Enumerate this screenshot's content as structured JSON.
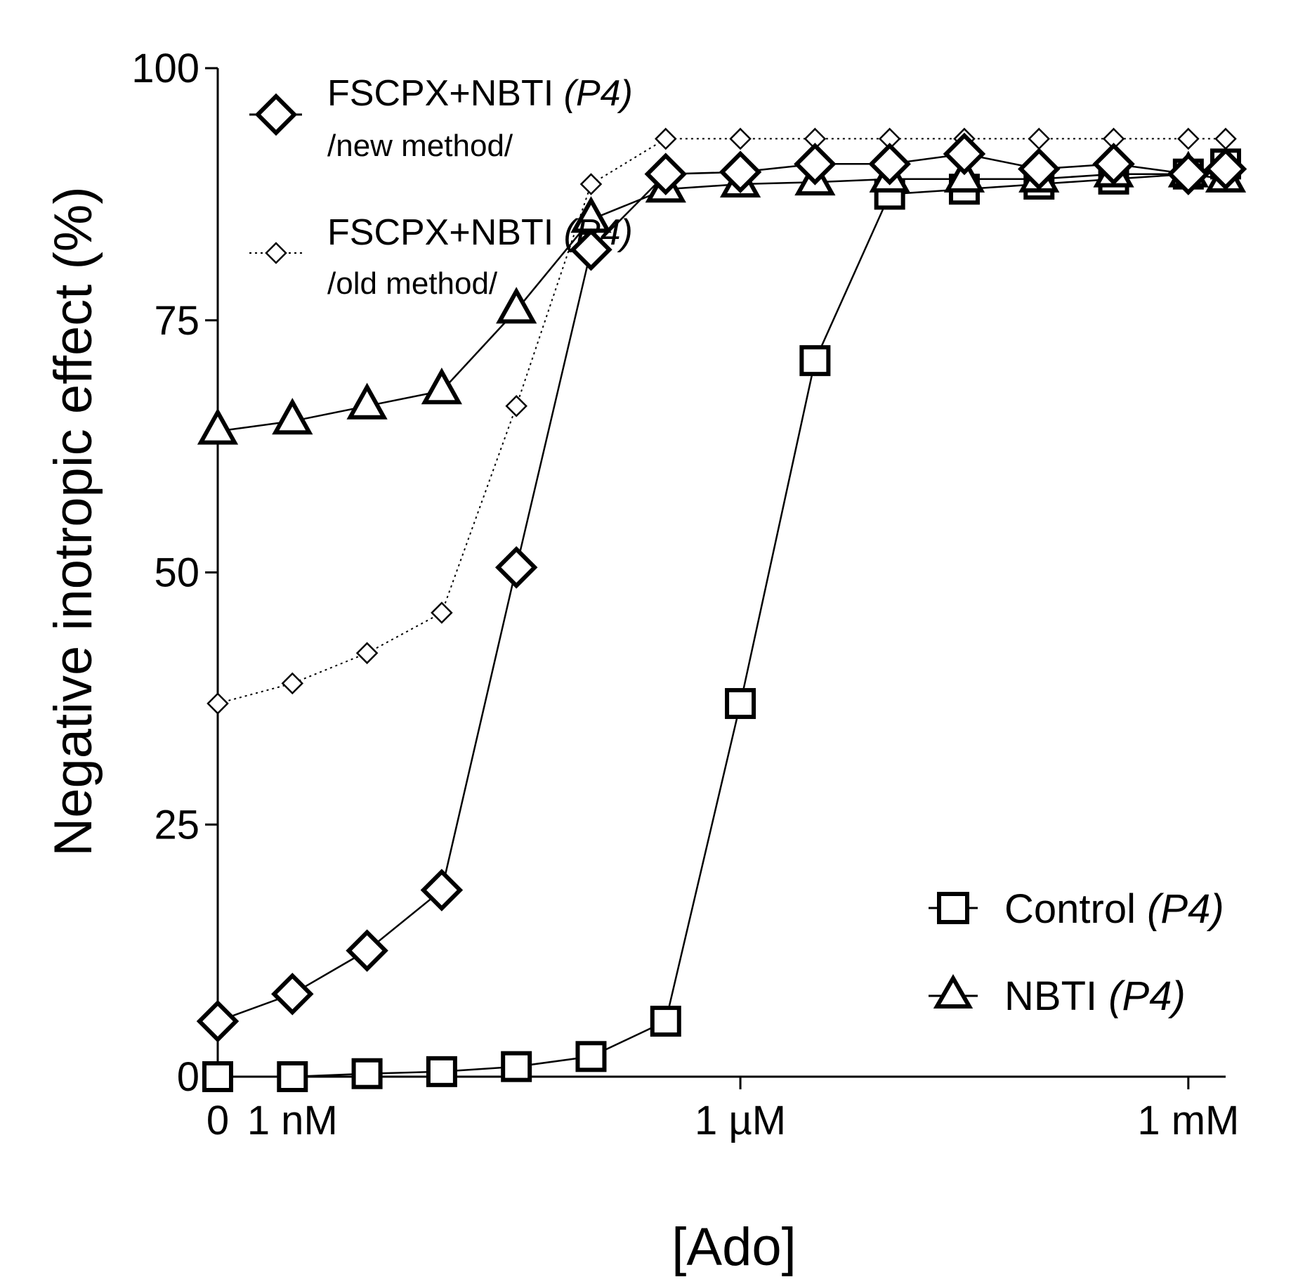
{
  "chart_data": {
    "type": "line",
    "title": "",
    "xlabel": "[Ado]",
    "ylabel": "Negative inotropic effect (%)",
    "x_scale": "log10 molar concentration; 'control' = 0 M placed at position -9.5",
    "x_positions": [
      -9.5,
      -9,
      -8.5,
      -8,
      -7.5,
      -7,
      -6.5,
      -6,
      -5.5,
      -5,
      -4.5,
      -4,
      -3.5,
      -3,
      -2.75
    ],
    "xlim": [
      -9.5,
      -2.75
    ],
    "ylim": [
      0,
      100
    ],
    "x_ticks": [
      {
        "pos": -9.5,
        "label": "0"
      },
      {
        "pos": -9,
        "label": "1 nM"
      },
      {
        "pos": -6,
        "label": "1 µM"
      },
      {
        "pos": -3,
        "label": "1 mM"
      }
    ],
    "y_ticks": [
      {
        "value": 0,
        "label": "0"
      },
      {
        "value": 25,
        "label": "25"
      },
      {
        "value": 50,
        "label": "50"
      },
      {
        "value": 75,
        "label": "75"
      },
      {
        "value": 100,
        "label": "100"
      }
    ],
    "series": [
      {
        "name": "FSCPX+NBTI (P4) /new method/",
        "marker": "diamond",
        "style": "solid-bold",
        "x": [
          -9.5,
          -9,
          -8.5,
          -8,
          -7.5,
          -7,
          -6.5,
          -6,
          -5.5,
          -5,
          -4.5,
          -4,
          -3.5,
          -3,
          -2.75
        ],
        "values": [
          5.5,
          8.2,
          12.5,
          18.5,
          50.5,
          82,
          89.5,
          89.7,
          90.5,
          90.5,
          91.5,
          90,
          90.5,
          89.5,
          90
        ]
      },
      {
        "name": "FSCPX+NBTI (P4) /old method/",
        "marker": "diamond-small",
        "style": "dotted",
        "x": [
          -9.5,
          -9,
          -8.5,
          -8,
          -7.5,
          -7,
          -6.5,
          -6,
          -5.5,
          -5,
          -4.5,
          -4,
          -3.5,
          -3,
          -2.75
        ],
        "values": [
          37,
          39,
          42,
          46,
          66.5,
          88.5,
          93,
          93,
          93,
          93,
          93,
          93,
          93,
          93,
          93
        ]
      },
      {
        "name": "Control (P4)",
        "marker": "square",
        "style": "solid",
        "x": [
          -9.5,
          -9,
          -8.5,
          -8,
          -7.5,
          -7,
          -6.5,
          -6,
          -5.5,
          -5,
          -4.5,
          -4,
          -3.5,
          -3,
          -2.75
        ],
        "values": [
          0,
          0,
          0.3,
          0.5,
          1,
          2,
          5.5,
          37,
          71,
          87.5,
          88,
          88.5,
          89,
          89.5,
          90.5
        ]
      },
      {
        "name": "NBTI (P4)",
        "marker": "triangle",
        "style": "solid",
        "x": [
          -9.5,
          -9,
          -8.5,
          -8,
          -7.5,
          -7,
          -6.5,
          -6,
          -5.5,
          -5,
          -4.5,
          -4,
          -3.5,
          -3,
          -2.75
        ],
        "values": [
          64,
          65,
          66.5,
          68,
          76,
          85,
          88,
          88.5,
          88.7,
          89,
          89,
          89,
          89.5,
          89.5,
          89
        ]
      }
    ],
    "legend": {
      "placement": "top-left and bottom-right",
      "entries": [
        {
          "text": "FSCPX+NBTI ",
          "italic": "(P4)",
          "sub": "/new method/"
        },
        {
          "text": "FSCPX+NBTI ",
          "italic": "(P4)",
          "sub": "/old method/"
        },
        {
          "text": "Control ",
          "italic": "(P4)"
        },
        {
          "text": "NBTI ",
          "italic": "(P4)"
        }
      ]
    }
  }
}
